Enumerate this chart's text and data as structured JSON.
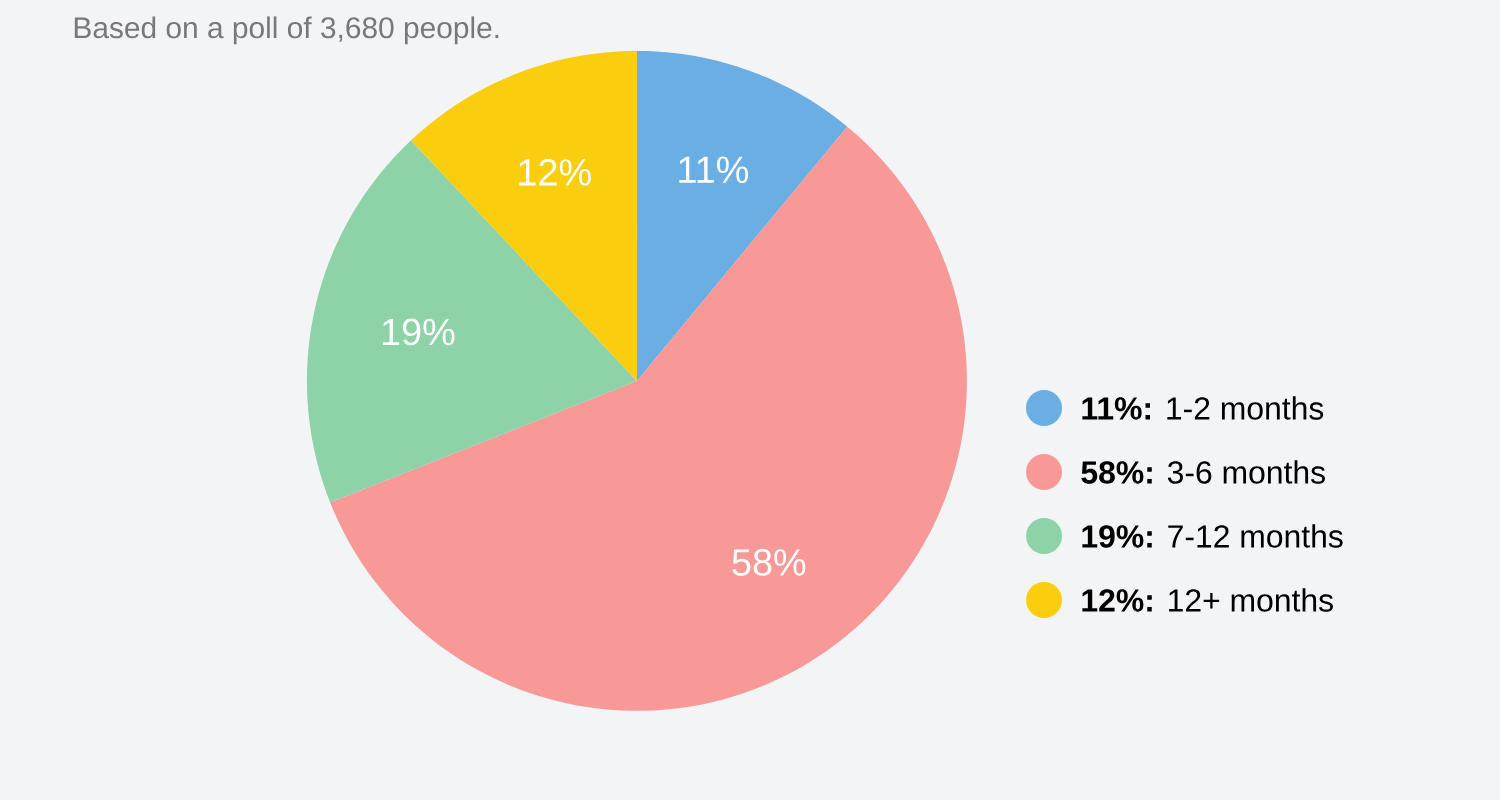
{
  "chart_data": {
    "type": "pie",
    "subtitle": "Based on a poll of 3,680 people.",
    "categories": [
      "**11%:** 1-2 months",
      "**58%:** 3-6 months",
      "**19%:** 7-12 months",
      "**12%:** 12+ months"
    ],
    "values": [
      11,
      58,
      19,
      12
    ],
    "colors": [
      "#6aaee3",
      "#f89997",
      "#8ed2a8",
      "#fbcd0f"
    ],
    "value_labels": [
      "11%",
      "58%",
      "19%",
      "12%"
    ],
    "legend": "right"
  }
}
